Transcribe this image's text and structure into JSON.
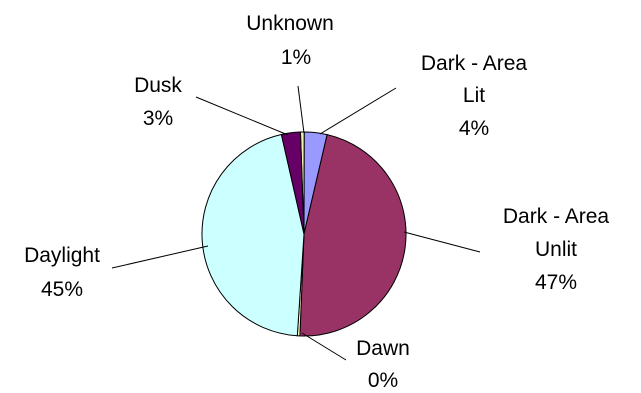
{
  "chart_data": {
    "type": "pie",
    "title": "",
    "slices": [
      {
        "name": "Unknown",
        "pct_label": "1%",
        "value": 0.6,
        "color": "#f2f2b0"
      },
      {
        "name": "Dark - Area Lit",
        "pct_label": "4%",
        "value": 3.6,
        "color": "#9999ff"
      },
      {
        "name": "Dark - Area Unlit",
        "pct_label": "47%",
        "value": 47,
        "color": "#993366"
      },
      {
        "name": "Dawn",
        "pct_label": "0%",
        "value": 0.4,
        "color": "#ffffcc"
      },
      {
        "name": "Daylight",
        "pct_label": "45%",
        "value": 45.4,
        "color": "#ccffff"
      },
      {
        "name": "Dusk",
        "pct_label": "3%",
        "value": 3.0,
        "color": "#660066"
      }
    ],
    "labels": {
      "unknown": {
        "l1": "Unknown",
        "l2": "1%"
      },
      "dark_lit": {
        "l1": "Dark - Area",
        "l2": "Lit",
        "l3": "4%"
      },
      "dark_unlit": {
        "l1": "Dark - Area",
        "l2": "Unlit",
        "l3": "47%"
      },
      "dawn": {
        "l1": "Dawn",
        "l2": "0%"
      },
      "daylight": {
        "l1": "Daylight",
        "l2": "45%"
      },
      "dusk": {
        "l1": "Dusk",
        "l2": "3%"
      }
    },
    "legend": "none",
    "start_angle_deg": -2
  }
}
